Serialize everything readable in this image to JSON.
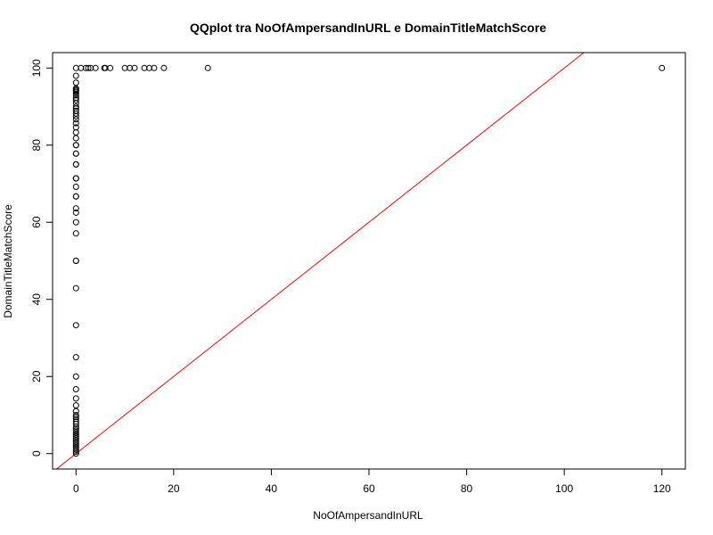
{
  "chart_data": {
    "type": "scatter",
    "title": "QQplot tra NoOfAmpersandInURL e DomainTitleMatchScore",
    "xlabel": "NoOfAmpersandInURL",
    "ylabel": "DomainTitleMatchScore",
    "xlim": [
      -4.8,
      124.8
    ],
    "ylim": [
      -4,
      104
    ],
    "xticks": [
      0,
      20,
      40,
      60,
      80,
      100,
      120
    ],
    "yticks": [
      0,
      20,
      40,
      60,
      80,
      100
    ],
    "grid": false,
    "point_color": "#000000",
    "reference_line": {
      "intercept": 0,
      "slope": 1,
      "color": "#ff0000"
    },
    "points": [
      [
        0,
        0
      ],
      [
        0,
        0.5
      ],
      [
        0,
        1
      ],
      [
        0,
        1.5
      ],
      [
        0,
        2
      ],
      [
        0,
        2.5
      ],
      [
        0,
        3
      ],
      [
        0,
        3.5
      ],
      [
        0,
        4
      ],
      [
        0,
        4.5
      ],
      [
        0,
        5
      ],
      [
        0,
        5.5
      ],
      [
        0,
        6
      ],
      [
        0,
        6.5
      ],
      [
        0,
        7
      ],
      [
        0,
        7.7
      ],
      [
        0,
        8.3
      ],
      [
        0,
        9
      ],
      [
        0,
        9.5
      ],
      [
        0,
        10
      ],
      [
        0,
        11
      ],
      [
        0,
        12.5
      ],
      [
        0,
        14.3
      ],
      [
        0,
        16.7
      ],
      [
        0,
        20
      ],
      [
        0,
        25
      ],
      [
        0,
        33.3
      ],
      [
        0,
        42.9
      ],
      [
        0,
        50
      ],
      [
        0,
        50
      ],
      [
        0,
        57.1
      ],
      [
        0,
        60
      ],
      [
        0,
        62.5
      ],
      [
        0,
        63.6
      ],
      [
        0,
        66.7
      ],
      [
        0,
        66.7
      ],
      [
        0,
        69.2
      ],
      [
        0,
        71.4
      ],
      [
        0,
        71.4
      ],
      [
        0,
        75
      ],
      [
        0,
        75
      ],
      [
        0,
        77.8
      ],
      [
        0,
        77.8
      ],
      [
        0,
        80
      ],
      [
        0,
        80
      ],
      [
        0,
        81.8
      ],
      [
        0,
        83.3
      ],
      [
        0,
        84.6
      ],
      [
        0,
        85.7
      ],
      [
        0,
        86.7
      ],
      [
        0,
        87.5
      ],
      [
        0,
        88.2
      ],
      [
        0,
        88.9
      ],
      [
        0,
        89.5
      ],
      [
        0,
        90
      ],
      [
        0,
        90.9
      ],
      [
        0,
        91.7
      ],
      [
        0,
        92.3
      ],
      [
        0,
        92.9
      ],
      [
        0,
        93.3
      ],
      [
        0,
        93.8
      ],
      [
        0,
        94.1
      ],
      [
        0,
        94.4
      ],
      [
        0,
        94.7
      ],
      [
        0,
        96.2
      ],
      [
        0,
        98
      ],
      [
        0,
        100
      ],
      [
        1,
        100
      ],
      [
        2,
        100
      ],
      [
        2.5,
        100
      ],
      [
        3,
        100
      ],
      [
        4,
        100
      ],
      [
        5.8,
        100
      ],
      [
        6,
        100
      ],
      [
        7,
        100
      ],
      [
        10,
        100
      ],
      [
        11,
        100
      ],
      [
        12,
        100
      ],
      [
        14,
        100
      ],
      [
        15,
        100
      ],
      [
        16,
        100
      ],
      [
        18,
        100
      ],
      [
        27,
        100
      ],
      [
        120,
        100
      ]
    ]
  }
}
